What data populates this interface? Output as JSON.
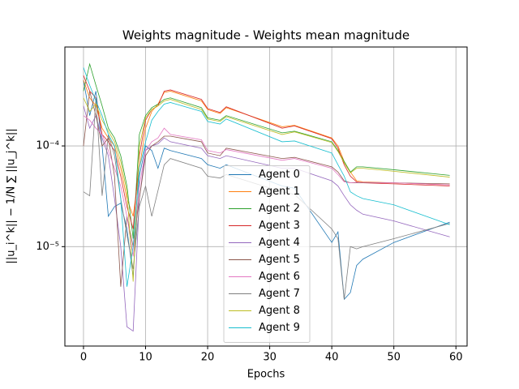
{
  "chart_data": {
    "type": "line",
    "title": "Weights magnitude - Weights mean magnitude",
    "x_label": "Epochs",
    "y_label": "||u_i^k|| − 1/N ∑ ||u_j^k||",
    "log_y": true,
    "grid": true,
    "legend_position": "center",
    "xlim": [
      -3,
      61.8
    ],
    "ylim": [
      1.03e-06,
      0.00096
    ],
    "xticks": [
      0,
      10,
      20,
      30,
      40,
      50,
      60
    ],
    "yticks": [
      {
        "value": 1e-05,
        "label": "10⁻⁵"
      },
      {
        "value": 0.0001,
        "label": "10⁻⁴"
      }
    ],
    "x": [
      0,
      1,
      2,
      3,
      4,
      5,
      6,
      7,
      8,
      9,
      10,
      11,
      12,
      13,
      14,
      19,
      20,
      22,
      23,
      32,
      34,
      40,
      41,
      42,
      43,
      44,
      45,
      50,
      59
    ],
    "series": [
      {
        "name": "Agent 0",
        "color": "#1f77b4",
        "values": [
          0.00045,
          0.0002,
          0.00035,
          0.0001,
          2e-05,
          2.5e-05,
          2.7e-05,
          1.5e-05,
          5e-06,
          5e-05,
          0.0001,
          9e-05,
          6e-05,
          9.5e-05,
          9e-05,
          7.5e-05,
          6.5e-05,
          6e-05,
          6.5e-05,
          4e-05,
          3.8e-05,
          1.1e-05,
          1.4e-05,
          3e-06,
          3.5e-06,
          6.5e-06,
          7.5e-06,
          1.1e-05,
          1.75e-05
        ]
      },
      {
        "name": "Agent 1",
        "color": "#ff7f0e",
        "values": [
          0.00045,
          0.0003,
          0.00025,
          0.00015,
          0.00012,
          0.0001,
          6e-05,
          3e-05,
          2e-05,
          6e-05,
          0.00015,
          0.00022,
          0.00026,
          0.00034,
          0.00035,
          0.00028,
          0.00023,
          0.00021,
          0.00024,
          0.000155,
          0.00016,
          0.00012,
          0.0001,
          7e-05,
          5.5e-05,
          4.5e-05,
          4.4e-05,
          4.3e-05,
          4.1e-05
        ]
      },
      {
        "name": "Agent 2",
        "color": "#2ca02c",
        "values": [
          0.00035,
          0.00065,
          0.0004,
          0.00025,
          0.00015,
          0.00012,
          8e-05,
          4e-05,
          1.2e-05,
          0.00013,
          0.0002,
          0.00024,
          0.00026,
          0.00029,
          0.0003,
          0.00024,
          0.00019,
          0.00018,
          0.0002,
          0.000135,
          0.00014,
          0.00011,
          9e-05,
          7e-05,
          5.5e-05,
          6.2e-05,
          6.2e-05,
          5.8e-05,
          5.1e-05
        ]
      },
      {
        "name": "Agent 3",
        "color": "#d62728",
        "values": [
          0.0005,
          0.00035,
          0.0003,
          0.00013,
          0.00011,
          9e-05,
          5e-05,
          2.5e-05,
          1.5e-05,
          8e-05,
          0.00018,
          0.00023,
          0.00025,
          0.00035,
          0.00036,
          0.00029,
          0.000235,
          0.000215,
          0.000245,
          0.00015,
          0.000158,
          0.000118,
          9.5e-05,
          6.5e-05,
          5e-05,
          4.4e-05,
          4.3e-05,
          4.2e-05,
          4e-05
        ]
      },
      {
        "name": "Agent 4",
        "color": "#9467bd",
        "values": [
          0.00025,
          0.00015,
          0.0002,
          0.00012,
          8e-05,
          3e-05,
          1e-05,
          1.6e-06,
          1.45e-06,
          3e-05,
          9e-05,
          0.0001,
          0.000105,
          0.00012,
          0.00011,
          9.5e-05,
          8e-05,
          7.5e-05,
          8e-05,
          6e-05,
          6e-05,
          4.5e-05,
          4e-05,
          3.2e-05,
          2.6e-05,
          2.3e-05,
          2.1e-05,
          1.8e-05,
          1.25e-05
        ]
      },
      {
        "name": "Agent 5",
        "color": "#8c564b",
        "values": [
          0.0001,
          0.00035,
          0.0002,
          0.0001,
          0.00012,
          5e-05,
          4e-06,
          2e-05,
          1e-05,
          3e-05,
          8e-05,
          0.0001,
          0.00011,
          0.000125,
          0.000125,
          0.00011,
          8.5e-05,
          8e-05,
          9.5e-05,
          7.5e-05,
          7.7e-05,
          6.2e-05,
          5.5e-05,
          4.5e-05,
          4.3e-05,
          4.3e-05,
          4.3e-05,
          4.3e-05,
          4.2e-05
        ]
      },
      {
        "name": "Agent 6",
        "color": "#e377c2",
        "values": [
          0.0002,
          0.00018,
          0.00015,
          0.00013,
          9e-05,
          6e-05,
          4e-05,
          2e-05,
          8e-06,
          4e-05,
          9e-05,
          0.00011,
          0.00012,
          0.00015,
          0.00013,
          0.000115,
          9e-05,
          8.5e-05,
          9.2e-05,
          7.2e-05,
          7.5e-05,
          6e-05,
          5.2e-05,
          4.4e-05,
          4.3e-05,
          4.35e-05,
          4.35e-05,
          4.3e-05,
          4.1e-05
        ]
      },
      {
        "name": "Agent 7",
        "color": "#7f7f7f",
        "values": [
          3.5e-05,
          3.2e-05,
          0.0003,
          3.2e-05,
          0.00013,
          8e-05,
          3e-05,
          1.3e-05,
          6e-06,
          2.5e-05,
          4e-05,
          2e-05,
          3.6e-05,
          6.5e-05,
          7.5e-05,
          6e-05,
          5e-05,
          4.8e-05,
          5.2e-05,
          3.5e-05,
          3.3e-05,
          1.5e-05,
          1.2e-05,
          3e-06,
          1e-05,
          9.5e-06,
          1e-05,
          1.2e-05,
          1.7e-05
        ]
      },
      {
        "name": "Agent 8",
        "color": "#bcbd22",
        "values": [
          0.0003,
          0.00022,
          0.00026,
          0.00018,
          0.00014,
          0.00011,
          7e-05,
          3.5e-05,
          4.5e-06,
          0.0001,
          0.00019,
          0.00023,
          0.00025,
          0.00028,
          0.00029,
          0.00023,
          0.000185,
          0.000175,
          0.000195,
          0.00013,
          0.000138,
          0.000108,
          8.8e-05,
          6.8e-05,
          5.4e-05,
          6e-05,
          6e-05,
          5.6e-05,
          4.9e-05
        ]
      },
      {
        "name": "Agent 9",
        "color": "#17becf",
        "values": [
          0.0006,
          0.0004,
          0.00028,
          0.0002,
          0.00013,
          0.0001,
          3e-05,
          4e-06,
          1e-05,
          6e-05,
          0.00011,
          0.00018,
          0.00022,
          0.00026,
          0.00027,
          0.00022,
          0.000175,
          0.000165,
          0.000185,
          0.00011,
          0.000112,
          8.5e-05,
          6.5e-05,
          5e-05,
          3.5e-05,
          3.2e-05,
          3e-05,
          2.6e-05,
          1.65e-05
        ]
      }
    ]
  }
}
